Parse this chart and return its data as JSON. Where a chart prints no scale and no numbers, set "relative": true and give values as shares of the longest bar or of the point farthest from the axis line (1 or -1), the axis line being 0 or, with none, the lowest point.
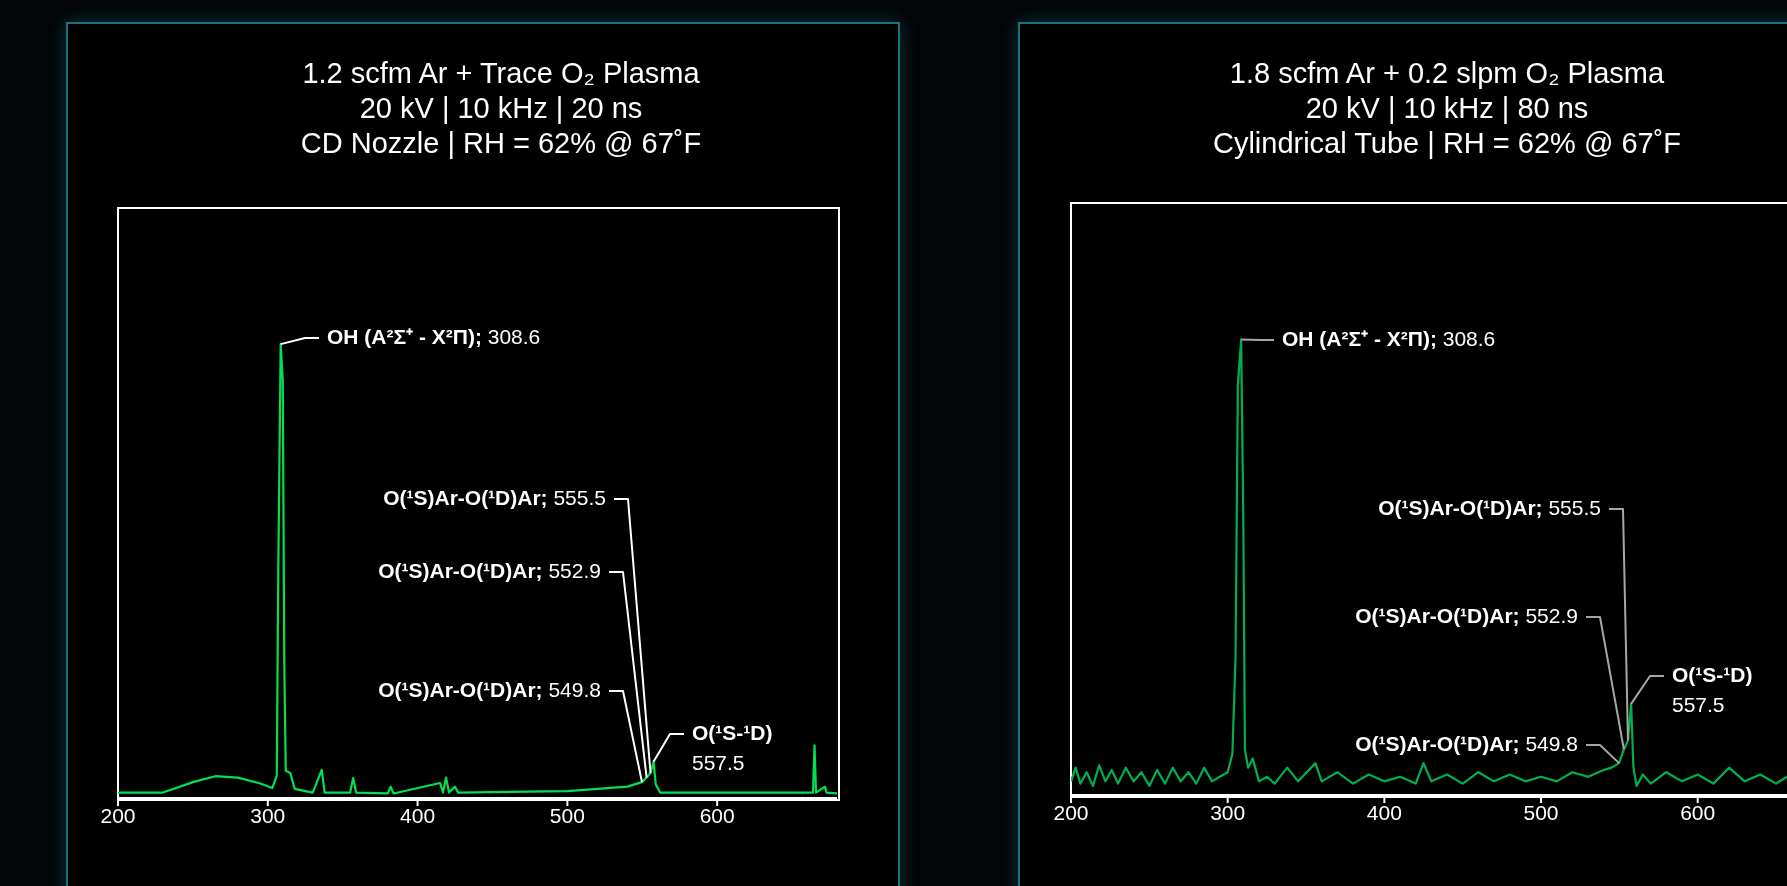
{
  "chart_data": [
    {
      "type": "line",
      "title": "1.2 scfm Ar + Trace O₂ Plasma",
      "subtitle": "20 kV | 10 kHz | 20 ns\nCD Nozzle | RH = 62% @ 67˚F",
      "relative": true,
      "marker": "none",
      "xlim": [
        200,
        680
      ],
      "xticks": [
        200,
        300,
        400,
        500,
        600
      ],
      "x": [
        200,
        230,
        250,
        265,
        280,
        295,
        303,
        306,
        307,
        308.6,
        310,
        311,
        312,
        315,
        318,
        330,
        336,
        338,
        355,
        357,
        359,
        380,
        382,
        384,
        415,
        417,
        419,
        421,
        425,
        427,
        500,
        540,
        549.8,
        552.9,
        555.5,
        557.5,
        559,
        562,
        620,
        664,
        665,
        666,
        672,
        673,
        680
      ],
      "series": [
        {
          "color": "#00e050",
          "values": [
            0.012,
            0.012,
            0.035,
            0.048,
            0.045,
            0.032,
            0.022,
            0.05,
            0.5,
            1,
            0.92,
            0.3,
            0.06,
            0.055,
            0.02,
            0.012,
            0.062,
            0.012,
            0.012,
            0.044,
            0.012,
            0.01,
            0.025,
            0.01,
            0.033,
            0.012,
            0.045,
            0.012,
            0.025,
            0.012,
            0.015,
            0.025,
            0.035,
            0.045,
            0.055,
            0.08,
            0.03,
            0.012,
            0.012,
            0.012,
            0.116,
            0.012,
            0.025,
            0.012,
            0.01
          ]
        }
      ],
      "annotations": [
        {
          "text": "OH (A²Σ⁺ - X²Π); 308.6",
          "x": 308.6,
          "y": 1
        },
        {
          "text": "O(¹S)Ar-O(¹D)Ar; 555.5",
          "x": 555.5,
          "y": 0.055
        },
        {
          "text": "O(¹S)Ar-O(¹D)Ar; 552.9",
          "x": 552.9,
          "y": 0.045
        },
        {
          "text": "O(¹S)Ar-O(¹D)Ar; 549.8",
          "x": 549.8,
          "y": 0.035
        },
        {
          "text": "O(¹S-¹D)\n557.5",
          "x": 557.5,
          "y": 0.08
        }
      ]
    },
    {
      "type": "line",
      "title": "1.8 scfm Ar + 0.2 slpm O₂ Plasma",
      "subtitle": "20 kV | 10 kHz | 80 ns\nCylindrical Tube | RH = 62% @ 67˚F",
      "relative": true,
      "marker": "none",
      "xlim": [
        200,
        657
      ],
      "xticks": [
        200,
        300,
        400,
        500,
        600
      ],
      "x": [
        200,
        203,
        206,
        210,
        214,
        218,
        222,
        226,
        230,
        235,
        240,
        245,
        250,
        255,
        260,
        265,
        270,
        275,
        280,
        285,
        290,
        295,
        300,
        303,
        305,
        306.5,
        308.6,
        310,
        311,
        313,
        316,
        320,
        325,
        330,
        338,
        345,
        356,
        360,
        370,
        380,
        390,
        400,
        410,
        420,
        425,
        430,
        440,
        450,
        460,
        470,
        480,
        490,
        500,
        510,
        520,
        530,
        540,
        545,
        549.8,
        552.9,
        555.5,
        557.5,
        559,
        561,
        565,
        570,
        580,
        590,
        600,
        610,
        620,
        630,
        640,
        650,
        657
      ],
      "series": [
        {
          "color": "#00b050",
          "values": [
            0.03,
            0.06,
            0.025,
            0.05,
            0.02,
            0.065,
            0.03,
            0.055,
            0.025,
            0.06,
            0.03,
            0.05,
            0.02,
            0.055,
            0.025,
            0.06,
            0.03,
            0.05,
            0.025,
            0.06,
            0.03,
            0.04,
            0.05,
            0.09,
            0.3,
            0.9,
            1,
            0.6,
            0.1,
            0.06,
            0.08,
            0.03,
            0.04,
            0.025,
            0.06,
            0.03,
            0.07,
            0.03,
            0.05,
            0.025,
            0.045,
            0.03,
            0.04,
            0.025,
            0.07,
            0.03,
            0.045,
            0.025,
            0.05,
            0.03,
            0.045,
            0.03,
            0.04,
            0.03,
            0.05,
            0.04,
            0.055,
            0.06,
            0.07,
            0.1,
            0.12,
            0.2,
            0.06,
            0.02,
            0.045,
            0.025,
            0.05,
            0.03,
            0.045,
            0.025,
            0.06,
            0.03,
            0.045,
            0.025,
            0.04
          ]
        }
      ],
      "annotations": [
        {
          "text": "OH (A²Σ⁺ - X²Π); 308.6",
          "x": 308.6,
          "y": 1
        },
        {
          "text": "O(¹S)Ar-O(¹D)Ar; 555.5",
          "x": 555.5,
          "y": 0.12
        },
        {
          "text": "O(¹S)Ar-O(¹D)Ar; 552.9",
          "x": 552.9,
          "y": 0.1
        },
        {
          "text": "O(¹S)Ar-O(¹D)Ar; 549.8",
          "x": 549.8,
          "y": 0.07
        },
        {
          "text": "O(¹S-¹D)\n557.5",
          "x": 557.5,
          "y": 0.2
        }
      ]
    }
  ]
}
